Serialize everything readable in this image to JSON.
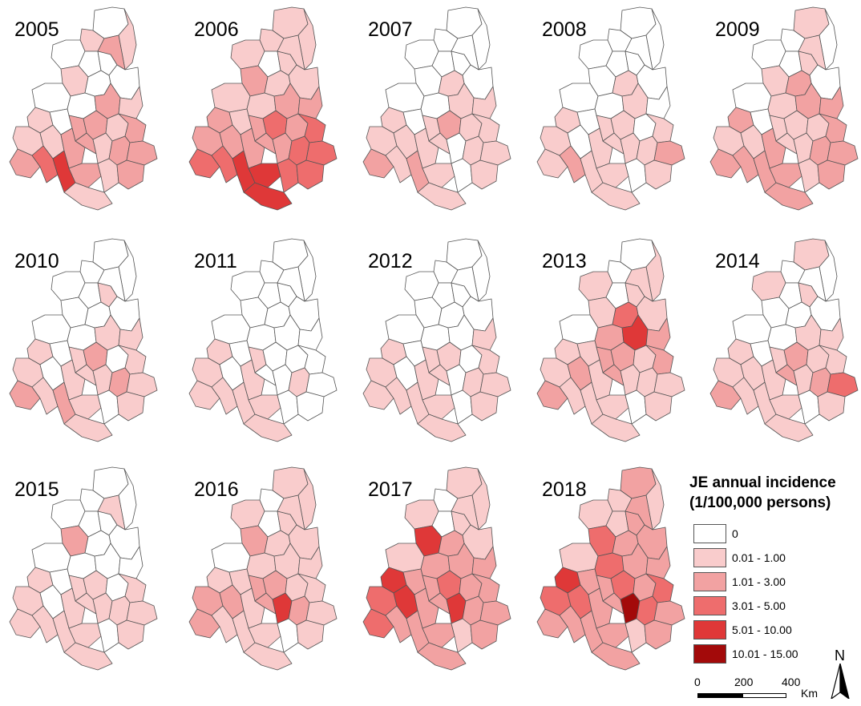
{
  "colors": {
    "class0": "#ffffff",
    "class1": "#f9cccc",
    "class2": "#f2a2a2",
    "class3": "#ee6d6d",
    "class4": "#df3838",
    "class5": "#a30a0a",
    "border": "#555555"
  },
  "panels": [
    {
      "year": "2005",
      "levels": [
        0,
        1,
        1,
        2,
        0,
        0,
        0,
        0,
        1,
        0,
        0,
        0,
        2,
        1,
        1,
        0,
        2,
        2,
        1,
        2,
        1,
        1,
        2,
        2,
        1,
        2,
        2,
        2,
        3,
        4,
        2,
        1,
        2,
        1
      ]
    },
    {
      "year": "2006",
      "levels": [
        1,
        1,
        1,
        1,
        1,
        0,
        1,
        1,
        2,
        1,
        1,
        1,
        2,
        2,
        2,
        1,
        2,
        3,
        2,
        3,
        2,
        2,
        2,
        2,
        2,
        3,
        3,
        3,
        3,
        4,
        4,
        3,
        3,
        4
      ]
    },
    {
      "year": "2007",
      "levels": [
        0,
        0,
        0,
        0,
        0,
        0,
        0,
        0,
        0,
        1,
        0,
        0,
        1,
        1,
        1,
        0,
        1,
        2,
        1,
        1,
        1,
        1,
        1,
        1,
        0,
        1,
        1,
        2,
        1,
        2,
        1,
        0,
        1,
        1
      ]
    },
    {
      "year": "2008",
      "levels": [
        0,
        0,
        0,
        0,
        0,
        0,
        0,
        0,
        0,
        1,
        0,
        0,
        1,
        0,
        1,
        0,
        1,
        1,
        0,
        1,
        1,
        0,
        1,
        1,
        1,
        1,
        2,
        1,
        2,
        1,
        1,
        0,
        1,
        1
      ]
    },
    {
      "year": "2009",
      "levels": [
        1,
        0,
        0,
        1,
        0,
        0,
        1,
        0,
        1,
        2,
        0,
        1,
        2,
        2,
        2,
        0,
        1,
        1,
        1,
        2,
        1,
        1,
        2,
        1,
        1,
        2,
        2,
        2,
        2,
        2,
        2,
        1,
        2,
        2
      ]
    },
    {
      "year": "2010",
      "levels": [
        0,
        0,
        0,
        0,
        0,
        0,
        1,
        0,
        0,
        0,
        0,
        0,
        1,
        1,
        1,
        0,
        1,
        2,
        0,
        1,
        1,
        0,
        1,
        1,
        1,
        2,
        1,
        2,
        1,
        2,
        1,
        0,
        1,
        1
      ]
    },
    {
      "year": "2011",
      "levels": [
        0,
        0,
        0,
        0,
        0,
        0,
        0,
        0,
        0,
        0,
        0,
        0,
        0,
        0,
        1,
        0,
        1,
        0,
        0,
        0,
        1,
        0,
        1,
        0,
        0,
        1,
        0,
        1,
        1,
        1,
        1,
        0,
        0,
        1
      ]
    },
    {
      "year": "2012",
      "levels": [
        0,
        0,
        0,
        0,
        0,
        0,
        0,
        0,
        0,
        0,
        0,
        0,
        0,
        1,
        1,
        0,
        1,
        1,
        0,
        1,
        1,
        0,
        1,
        1,
        0,
        1,
        1,
        1,
        1,
        1,
        1,
        0,
        1,
        1
      ]
    },
    {
      "year": "2013",
      "levels": [
        0,
        1,
        0,
        1,
        1,
        0,
        1,
        1,
        1,
        3,
        0,
        2,
        4,
        2,
        1,
        1,
        2,
        2,
        1,
        2,
        1,
        2,
        1,
        2,
        1,
        1,
        1,
        2,
        1,
        1,
        1,
        0,
        1,
        1
      ]
    },
    {
      "year": "2014",
      "levels": [
        1,
        0,
        0,
        0,
        1,
        0,
        1,
        0,
        0,
        0,
        0,
        0,
        1,
        1,
        1,
        0,
        1,
        2,
        1,
        1,
        1,
        1,
        1,
        2,
        1,
        2,
        3,
        2,
        1,
        1,
        1,
        0,
        1,
        1
      ]
    },
    {
      "year": "2015",
      "levels": [
        0,
        0,
        0,
        1,
        0,
        0,
        0,
        0,
        2,
        0,
        0,
        0,
        0,
        0,
        1,
        0,
        1,
        1,
        0,
        1,
        1,
        0,
        1,
        1,
        1,
        1,
        1,
        1,
        1,
        1,
        1,
        0,
        1,
        1
      ]
    },
    {
      "year": "2016",
      "levels": [
        1,
        1,
        0,
        1,
        1,
        0,
        1,
        1,
        2,
        1,
        0,
        1,
        1,
        1,
        1,
        1,
        2,
        2,
        1,
        1,
        2,
        2,
        1,
        2,
        4,
        2,
        1,
        2,
        1,
        1,
        1,
        0,
        1,
        1
      ]
    },
    {
      "year": "2017",
      "levels": [
        1,
        1,
        0,
        1,
        1,
        0,
        1,
        1,
        4,
        2,
        1,
        2,
        2,
        2,
        4,
        2,
        2,
        3,
        2,
        2,
        3,
        4,
        2,
        2,
        4,
        2,
        2,
        3,
        2,
        2,
        2,
        1,
        2,
        2
      ]
    },
    {
      "year": "2018",
      "levels": [
        2,
        1,
        1,
        2,
        1,
        1,
        2,
        2,
        3,
        2,
        1,
        3,
        2,
        2,
        4,
        2,
        2,
        3,
        2,
        3,
        3,
        3,
        2,
        2,
        5,
        3,
        2,
        2,
        2,
        2,
        2,
        1,
        2,
        2
      ]
    }
  ],
  "legend": {
    "title_line1": "JE annual incidence",
    "title_line2": "(1/100,000 persons)",
    "items": [
      {
        "label": "0",
        "color": "#ffffff"
      },
      {
        "label": "0.01 - 1.00",
        "color": "#f9cccc"
      },
      {
        "label": "1.01 - 3.00",
        "color": "#f2a2a2"
      },
      {
        "label": "3.01 - 5.00",
        "color": "#ee6d6d"
      },
      {
        "label": "5.01 - 10.00",
        "color": "#df3838"
      },
      {
        "label": "10.01 - 15.00",
        "color": "#a30a0a"
      }
    ]
  },
  "scale_bar": {
    "ticks": [
      "0",
      "200",
      "400"
    ],
    "unit": "Km"
  },
  "north_arrow": {
    "label": "N",
    "icon": "north-arrow-icon"
  }
}
